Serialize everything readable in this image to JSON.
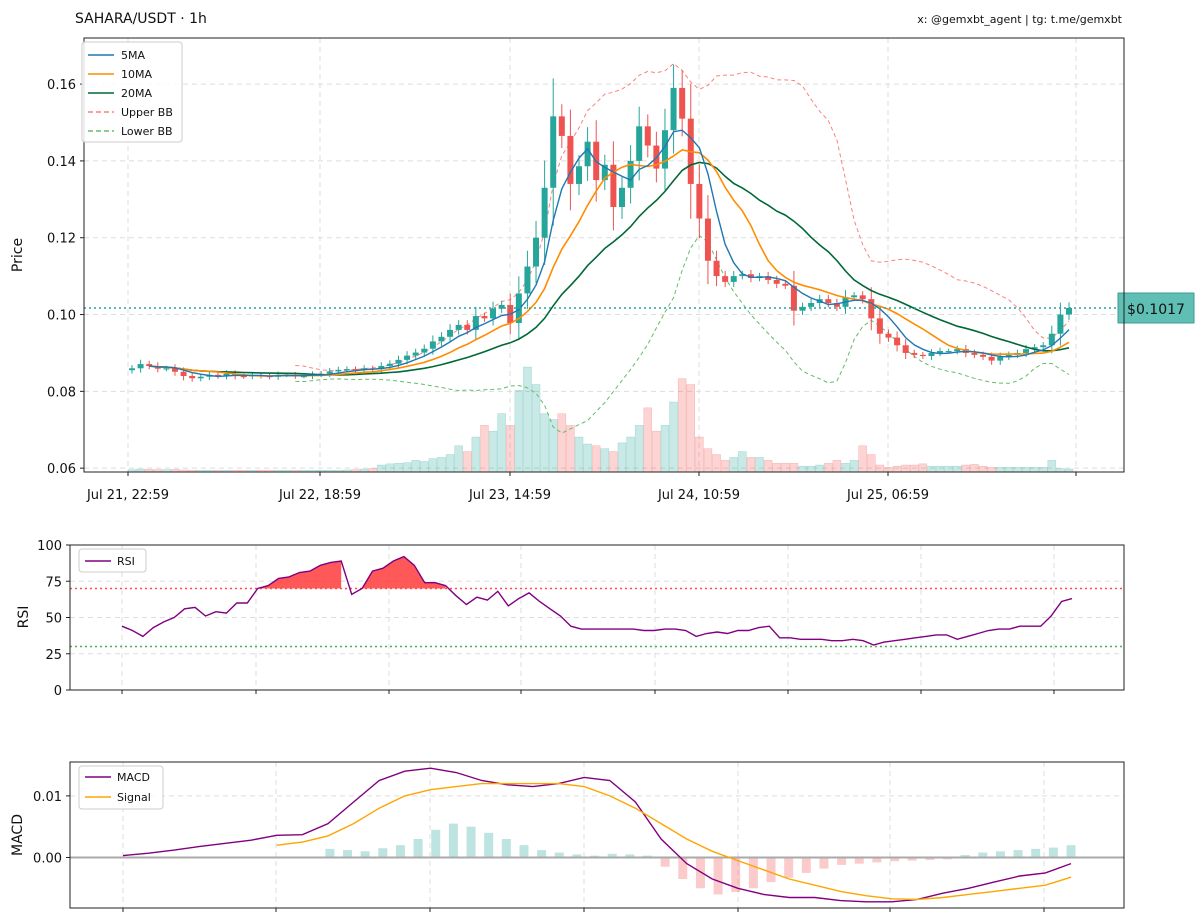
{
  "header": {
    "title": "SAHARA/USDT · 1h",
    "credit": "x: @gemxbt_agent | tg: t.me/gemxbt"
  },
  "colors": {
    "up": "#26a69a",
    "down": "#ef5350",
    "ma5": "#1f77b4",
    "ma10": "#ff8c00",
    "ma20": "#006837",
    "upper_bb": "#ff7f7f",
    "lower_bb": "#66bb6a",
    "rsi": "#800080",
    "macd": "#800080",
    "signal": "#ffa500",
    "price_tag": "#5fbfb5"
  },
  "chart_data": [
    {
      "id": "price",
      "type": "candlestick",
      "ylabel": "Price",
      "ylim": [
        0.059,
        0.172
      ],
      "yticks": [
        "0.06",
        "0.08",
        "0.10",
        "0.12",
        "0.14",
        "0.16"
      ],
      "xticks": [
        "Jul 21, 22:59",
        "Jul 22, 18:59",
        "Jul 23, 14:59",
        "Jul 24, 10:59",
        "Jul 25, 06:59"
      ],
      "grid": true,
      "legend_position": "top-left",
      "legend": [
        "5MA",
        "10MA",
        "20MA",
        "Upper BB",
        "Lower BB"
      ],
      "current_price": 0.1017,
      "current_price_label": "$0.1017",
      "close": [
        0.086,
        0.0871,
        0.0866,
        0.0859,
        0.086,
        0.0851,
        0.084,
        0.0834,
        0.0838,
        0.0843,
        0.084,
        0.0846,
        0.084,
        0.0839,
        0.0842,
        0.084,
        0.0838,
        0.0843,
        0.0843,
        0.084,
        0.084,
        0.0844,
        0.0846,
        0.0852,
        0.0856,
        0.0858,
        0.0856,
        0.086,
        0.0858,
        0.0866,
        0.0872,
        0.0882,
        0.0893,
        0.0901,
        0.0911,
        0.093,
        0.0942,
        0.096,
        0.0973,
        0.096,
        0.0996,
        0.099,
        0.1015,
        0.1025,
        0.0978,
        0.1055,
        0.1125,
        0.12,
        0.133,
        0.1516,
        0.1465,
        0.134,
        0.1386,
        0.145,
        0.135,
        0.139,
        0.128,
        0.133,
        0.14,
        0.149,
        0.144,
        0.138,
        0.148,
        0.159,
        0.151,
        0.134,
        0.125,
        0.114,
        0.11,
        0.1085,
        0.11,
        0.1105,
        0.1095,
        0.11,
        0.109,
        0.108,
        0.1075,
        0.101,
        0.102,
        0.103,
        0.104,
        0.103,
        0.102,
        0.1045,
        0.105,
        0.104,
        0.099,
        0.095,
        0.094,
        0.092,
        0.09,
        0.0895,
        0.0892,
        0.09,
        0.0905,
        0.0905,
        0.091,
        0.09,
        0.0895,
        0.089,
        0.088,
        0.089,
        0.0895,
        0.09,
        0.091,
        0.0915,
        0.092,
        0.095,
        0.1,
        0.1017
      ],
      "volume": [
        0.4,
        0.5,
        0.45,
        0.4,
        0.4,
        0.45,
        0.35,
        0.3,
        0.3,
        0.3,
        0.3,
        0.3,
        0.3,
        0.3,
        0.3,
        0.3,
        0.3,
        0.3,
        0.3,
        0.3,
        0.3,
        0.3,
        0.3,
        0.3,
        0.3,
        0.35,
        0.4,
        0.5,
        0.6,
        1.2,
        1.4,
        1.5,
        1.6,
        2.0,
        1.8,
        2.3,
        2.5,
        3.0,
        4.5,
        3.5,
        6.0,
        8.0,
        7.0,
        10.0,
        8.0,
        14.0,
        18.0,
        15.0,
        10.0,
        9.0,
        10.0,
        8.0,
        6.0,
        4.8,
        4.5,
        4.0,
        3.5,
        5.0,
        6.0,
        8.0,
        11.0,
        7.0,
        8.0,
        12.0,
        16.0,
        15.0,
        6.0,
        4.0,
        3.0,
        2.0,
        2.5,
        3.5,
        2.5,
        2.5,
        2.0,
        1.5,
        1.5,
        1.5,
        1.0,
        1.0,
        1.2,
        1.5,
        2.0,
        1.5,
        2.0,
        4.5,
        3.0,
        1.2,
        0.8,
        1.0,
        1.2,
        1.2,
        1.4,
        1.0,
        1.0,
        1.0,
        1.0,
        1.2,
        1.3,
        1.0,
        0.8,
        0.8,
        0.8,
        0.8,
        0.8,
        0.8,
        0.8,
        2.0,
        0.6,
        0.5
      ],
      "volume_note": "volume shown as relative bar heights at the bottom of the price pane"
    },
    {
      "id": "rsi",
      "type": "line",
      "ylabel": "RSI",
      "ylim": [
        0,
        100
      ],
      "yticks": [
        "0",
        "25",
        "50",
        "75",
        "100"
      ],
      "overbought": 70,
      "oversold": 30,
      "legend": [
        "RSI"
      ],
      "series": [
        {
          "name": "RSI",
          "values": [
            44,
            41,
            37,
            43,
            47,
            50,
            56,
            57,
            51,
            54,
            53,
            60,
            60,
            70,
            72,
            77,
            78,
            81,
            82,
            86,
            88,
            89,
            66,
            70,
            82,
            84,
            89,
            92,
            86,
            74,
            74,
            72,
            65,
            59,
            64,
            62,
            68,
            58,
            63,
            67,
            61,
            56,
            51,
            44,
            42,
            42,
            42,
            42,
            42,
            42,
            41,
            41,
            42,
            42,
            41,
            37,
            39,
            40,
            39,
            41,
            41,
            43,
            44,
            36,
            36,
            35,
            35,
            35,
            34,
            34,
            35,
            34,
            31,
            33,
            34,
            35,
            36,
            37,
            38,
            38,
            35,
            37,
            39,
            41,
            42,
            42,
            44,
            44,
            44,
            51,
            61,
            63
          ]
        }
      ]
    },
    {
      "id": "macd",
      "type": "line",
      "ylabel": "MACD",
      "ylim": [
        -0.0082,
        0.0155
      ],
      "yticks": [
        "0.00",
        "0.01"
      ],
      "legend": [
        "MACD",
        "Signal"
      ],
      "series": [
        {
          "name": "MACD",
          "values": [
            0.0003,
            0.0007,
            0.0012,
            0.0018,
            0.0023,
            0.0028,
            0.0036,
            0.0037,
            0.0055,
            0.009,
            0.0125,
            0.014,
            0.0145,
            0.0138,
            0.0125,
            0.0118,
            0.0115,
            0.012,
            0.013,
            0.0125,
            0.009,
            0.003,
            -0.001,
            -0.0035,
            -0.005,
            -0.006,
            -0.0065,
            -0.0065,
            -0.007,
            -0.0072,
            -0.0072,
            -0.0068,
            -0.0058,
            -0.005,
            -0.004,
            -0.003,
            -0.0025,
            -0.001
          ]
        },
        {
          "name": "Signal",
          "values": [
            null,
            null,
            null,
            null,
            null,
            null,
            0.002,
            0.0025,
            0.0035,
            0.0055,
            0.008,
            0.01,
            0.011,
            0.0115,
            0.012,
            0.012,
            0.012,
            0.012,
            0.0115,
            0.01,
            0.008,
            0.0055,
            0.003,
            0.001,
            -0.0005,
            -0.002,
            -0.0035,
            -0.0045,
            -0.0055,
            -0.0062,
            -0.0067,
            -0.0068,
            -0.0065,
            -0.006,
            -0.0055,
            -0.005,
            -0.0045,
            -0.0032
          ]
        }
      ],
      "histogram": [
        0.0,
        0.0,
        0.0,
        0.0,
        0.0,
        0.0,
        0.0014,
        0.0012,
        0.001,
        0.0015,
        0.002,
        0.003,
        0.0045,
        0.0055,
        0.005,
        0.004,
        0.003,
        0.002,
        0.0012,
        0.0008,
        0.0005,
        0.0003,
        0.0006,
        0.0005,
        0.0003,
        -0.0015,
        -0.0035,
        -0.005,
        -0.006,
        -0.0056,
        -0.005,
        -0.004,
        -0.0033,
        -0.0025,
        -0.0018,
        -0.0012,
        -0.001,
        -0.0008,
        -0.0006,
        -0.0005,
        -0.0004,
        -0.0003,
        0.0004,
        0.0008,
        0.001,
        0.0012,
        0.0014,
        0.0016,
        0.002
      ]
    }
  ]
}
